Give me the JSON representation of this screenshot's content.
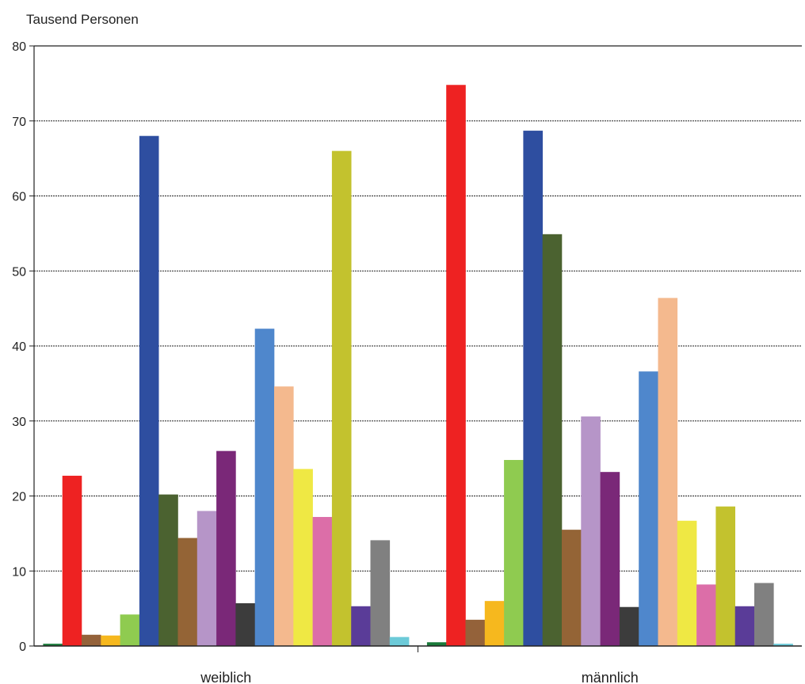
{
  "chart_data": {
    "type": "bar",
    "title": "",
    "ylabel": "Tausend Personen",
    "xlabel": "",
    "categories": [
      "weiblich",
      "männlich"
    ],
    "ylim": [
      0,
      80
    ],
    "yticks": [
      "0",
      "10",
      "20",
      "30",
      "40",
      "50",
      "60",
      "70",
      "80"
    ],
    "grid": true,
    "legend": "none",
    "series": [
      {
        "color": "#1a7a3a",
        "values": [
          0.3,
          0.5
        ]
      },
      {
        "color": "#ee2222",
        "values": [
          22.7,
          74.8
        ]
      },
      {
        "color": "#94623a",
        "values": [
          1.5,
          3.5
        ]
      },
      {
        "color": "#f6b81e",
        "values": [
          1.4,
          6.0
        ]
      },
      {
        "color": "#8fcb50",
        "values": [
          4.2,
          24.8
        ]
      },
      {
        "color": "#2e4ea0",
        "values": [
          68.0,
          68.7
        ]
      },
      {
        "color": "#4b6230",
        "values": [
          20.2,
          54.9
        ]
      },
      {
        "color": "#946436",
        "values": [
          14.4,
          15.5
        ]
      },
      {
        "color": "#b695c8",
        "values": [
          18.0,
          30.6
        ]
      },
      {
        "color": "#7a2878",
        "values": [
          26.0,
          23.2
        ]
      },
      {
        "color": "#3c3c3c",
        "values": [
          5.7,
          5.2
        ]
      },
      {
        "color": "#4f87cc",
        "values": [
          42.3,
          36.6
        ]
      },
      {
        "color": "#f4b98e",
        "values": [
          34.6,
          46.4
        ]
      },
      {
        "color": "#efe844",
        "values": [
          23.6,
          16.7
        ]
      },
      {
        "color": "#dc6ea8",
        "values": [
          17.2,
          8.2
        ]
      },
      {
        "color": "#c3c22e",
        "values": [
          66.0,
          18.6
        ]
      },
      {
        "color": "#5a3c98",
        "values": [
          5.3,
          5.3
        ]
      },
      {
        "color": "#808080",
        "values": [
          14.1,
          8.4
        ]
      },
      {
        "color": "#6ccad8",
        "values": [
          1.2,
          0.3
        ]
      }
    ]
  }
}
